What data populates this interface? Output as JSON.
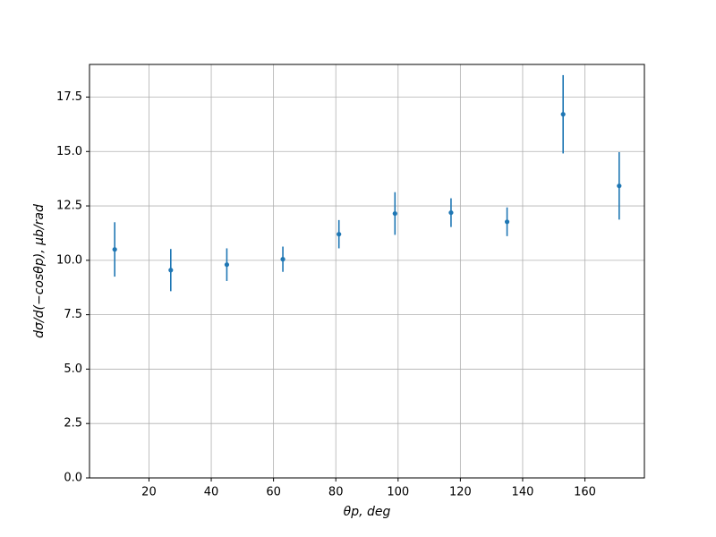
{
  "chart_data": {
    "type": "errorbar",
    "x_label": "θp, deg",
    "y_label": "dσ/d(−cosθp), μb/rad",
    "x": [
      9,
      27,
      45,
      63,
      81,
      99,
      117,
      135,
      153,
      171
    ],
    "values": [
      10.5,
      9.55,
      9.8,
      10.05,
      11.2,
      12.15,
      12.19,
      11.77,
      16.71,
      13.42
    ],
    "errors": [
      1.25,
      0.97,
      0.75,
      0.58,
      0.65,
      0.98,
      0.66,
      0.66,
      1.8,
      1.55
    ],
    "color": "#1f77b4",
    "xlim": [
      0.9,
      179.1
    ],
    "ylim": [
      0,
      19.0
    ],
    "xticks": [
      20,
      40,
      60,
      80,
      100,
      120,
      140,
      160
    ],
    "yticks": [
      {
        "value": 0,
        "label": "0.0"
      },
      2.5,
      {
        "value": 5,
        "label": "5.0"
      },
      7.5,
      {
        "value": 10,
        "label": "10.0"
      },
      12.5,
      {
        "value": 15,
        "label": "15.0"
      },
      17.5
    ],
    "grid": true
  }
}
